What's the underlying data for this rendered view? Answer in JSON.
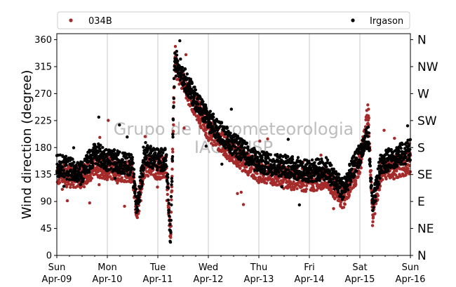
{
  "chart_data": {
    "type": "scatter",
    "ylabel": "Wind direction (degree)",
    "ylim": [
      0,
      370
    ],
    "yticks": [
      0,
      45,
      90,
      135,
      180,
      225,
      270,
      315,
      360
    ],
    "right_axis_labels": [
      "N",
      "NE",
      "E",
      "SE",
      "S",
      "SW",
      "W",
      "NW",
      "N"
    ],
    "x_start": "2023-04-09 00:00",
    "x_end": "2023-04-16 00:00",
    "x_ticks": [
      {
        "day": "Sun",
        "date": "Apr-09"
      },
      {
        "day": "Mon",
        "date": "Apr-10"
      },
      {
        "day": "Tue",
        "date": "Apr-11"
      },
      {
        "day": "Wed",
        "date": "Apr-12"
      },
      {
        "day": "Thu",
        "date": "Apr-13"
      },
      {
        "day": "Fri",
        "date": "Apr-14"
      },
      {
        "day": "Sat",
        "date": "Apr-15"
      },
      {
        "day": "Sun",
        "date": "Apr-16"
      }
    ],
    "grid": "vertical-only",
    "legend_position": "top-above-plot",
    "watermark": [
      "Grupo de Micrometeorologia",
      "IAG / USP"
    ],
    "series": [
      {
        "name": "034B",
        "color": "#a52a2a",
        "trend": [
          [
            "2023-04-09 00:00",
            135
          ],
          [
            "2023-04-09 12:00",
            130
          ],
          [
            "2023-04-09 18:00",
            150
          ],
          [
            "2023-04-10 00:00",
            145
          ],
          [
            "2023-04-10 12:00",
            140
          ],
          [
            "2023-04-10 14:00",
            70
          ],
          [
            "2023-04-10 18:00",
            150
          ],
          [
            "2023-04-11 00:00",
            145
          ],
          [
            "2023-04-11 04:00",
            150
          ],
          [
            "2023-04-11 06:00",
            25
          ],
          [
            "2023-04-11 08:00",
            320
          ],
          [
            "2023-04-11 14:00",
            275
          ],
          [
            "2023-04-12 00:00",
            210
          ],
          [
            "2023-04-12 12:00",
            170
          ],
          [
            "2023-04-13 00:00",
            140
          ],
          [
            "2023-04-13 12:00",
            130
          ],
          [
            "2023-04-14 00:00",
            125
          ],
          [
            "2023-04-14 08:00",
            130
          ],
          [
            "2023-04-14 16:00",
            95
          ],
          [
            "2023-04-15 00:00",
            150
          ],
          [
            "2023-04-15 04:00",
            240
          ],
          [
            "2023-04-15 06:00",
            60
          ],
          [
            "2023-04-15 10:00",
            140
          ],
          [
            "2023-04-16 00:00",
            155
          ]
        ]
      },
      {
        "name": "Irgason",
        "color": "#000000",
        "trend": [
          [
            "2023-04-09 00:00",
            150
          ],
          [
            "2023-04-09 12:00",
            140
          ],
          [
            "2023-04-09 18:00",
            170
          ],
          [
            "2023-04-10 00:00",
            160
          ],
          [
            "2023-04-10 12:00",
            150
          ],
          [
            "2023-04-10 14:00",
            80
          ],
          [
            "2023-04-10 18:00",
            170
          ],
          [
            "2023-04-11 00:00",
            160
          ],
          [
            "2023-04-11 04:00",
            160
          ],
          [
            "2023-04-11 06:00",
            30
          ],
          [
            "2023-04-11 08:00",
            330
          ],
          [
            "2023-04-11 14:00",
            285
          ],
          [
            "2023-04-12 00:00",
            225
          ],
          [
            "2023-04-12 12:00",
            185
          ],
          [
            "2023-04-13 00:00",
            155
          ],
          [
            "2023-04-13 12:00",
            150
          ],
          [
            "2023-04-14 00:00",
            140
          ],
          [
            "2023-04-14 08:00",
            145
          ],
          [
            "2023-04-14 16:00",
            110
          ],
          [
            "2023-04-15 00:00",
            170
          ],
          [
            "2023-04-15 04:00",
            200
          ],
          [
            "2023-04-15 06:00",
            80
          ],
          [
            "2023-04-15 10:00",
            155
          ],
          [
            "2023-04-16 00:00",
            175
          ]
        ]
      }
    ]
  }
}
